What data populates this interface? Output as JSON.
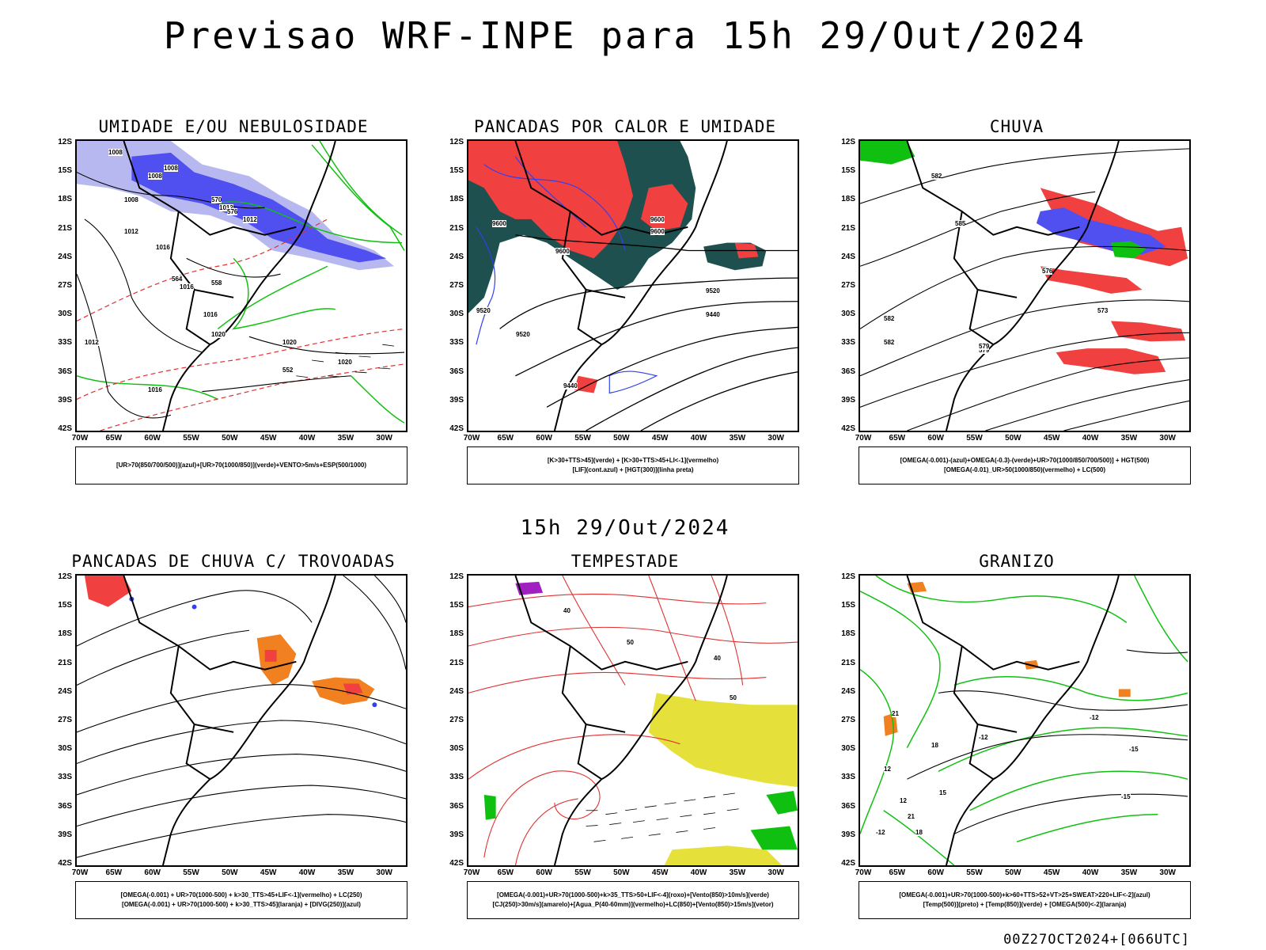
{
  "header": {
    "title": "Previsao WRF-INPE  para 15h 29/Out/2024",
    "mid_label": "15h 29/Out/2024",
    "run_stamp": "00Z27OCT2024+[066UTC]"
  },
  "axes": {
    "lat_ticks": [
      "12S",
      "15S",
      "18S",
      "21S",
      "24S",
      "27S",
      "30S",
      "33S",
      "36S",
      "39S",
      "42S"
    ],
    "lon_ticks": [
      "70W",
      "65W",
      "60W",
      "55W",
      "50W",
      "45W",
      "40W",
      "35W",
      "30W"
    ]
  },
  "panels": [
    {
      "title": "UMIDADE E/OU NEBULOSIDADE",
      "legend": [
        "[UR>70(850/700/500)](azul)+[UR>70(1000/850)](verde)+VENTO>5m/s+ESP(500/1000)"
      ],
      "contour_labels": [
        "1008",
        "1008",
        "1008",
        "1008",
        "1012",
        "1012",
        "1012",
        "1016",
        "1016",
        "1016",
        "1020",
        "1020",
        "1020",
        "1012",
        "1016",
        "570",
        "576",
        "564",
        "558",
        "552"
      ]
    },
    {
      "title": "PANCADAS POR CALOR E UMIDADE",
      "legend": [
        "[K>30+TTS>45](verde) + [K>30+TTS>45+LI<-1](vermelho)",
        "[LIF](cont.azul) + [HGT(300)](linha preta)"
      ],
      "contour_labels": [
        "9600",
        "9600",
        "9600",
        "9600",
        "9520",
        "9440",
        "9520",
        "9440",
        "9520"
      ]
    },
    {
      "title": "CHUVA",
      "legend": [
        "[OMEGA(-0.001)-(azul)+OMEGA(-0.3)-(verde)+UR>70(1000/850/700/500)] + HGT(500)",
        "[OMEGA(-0.01)_UR>50(1000/850)(vermelho) + LC(500)"
      ],
      "contour_labels": [
        "582",
        "585",
        "579",
        "576",
        "573",
        "582",
        "579",
        "582"
      ]
    },
    {
      "title": "PANCADAS DE CHUVA C/ TROVOADAS",
      "legend": [
        "[OMEGA(-0.001) + UR>70(1000-500) + k>30_TTS>45+LIF<-1](vermelho) + LC(250)",
        "[OMEGA(-0.001) + UR>70(1000-500) + k>30_TTS>45](laranja) + [DIVG(250)](azul)"
      ],
      "contour_labels": []
    },
    {
      "title": "TEMPESTADE",
      "legend": [
        "[OMEGA(-0.001)+UR>70(1000-500)+k>35_TTS>50+LIF<-4](roxo)+[Vento(850)>10m/s](verde)",
        "[CJ(250)>30m/s](amarelo)+[Agua_P(40-60mm)](vermelho)+LC(850)+[Vento(850)>15m/s](vetor)"
      ],
      "contour_labels": [
        "40",
        "50",
        "40",
        "50"
      ]
    },
    {
      "title": "GRANIZO",
      "legend": [
        "[OMEGA(-0.001)+UR>70(1000-500)+k>60+TTS>52+VT>25+SWEAT>220+LIF<-2](azul)",
        "[Temp(500)](preto) + [Temp(850)](verde) + [OMEGA(500)<-2](laranja)"
      ],
      "contour_labels": [
        "-12",
        "-12",
        "-15",
        "-15",
        "12",
        "12",
        "15",
        "18",
        "21",
        "21",
        "-12",
        "18"
      ]
    }
  ],
  "colors": {
    "light_blue": "#b8b8f0",
    "blue": "#5050f0",
    "green": "#10c010",
    "red": "#f04040",
    "dark_teal": "#1e5050",
    "orange": "#f08020",
    "yellow": "#e6e03a",
    "purple": "#a020c0",
    "black": "#000000"
  }
}
